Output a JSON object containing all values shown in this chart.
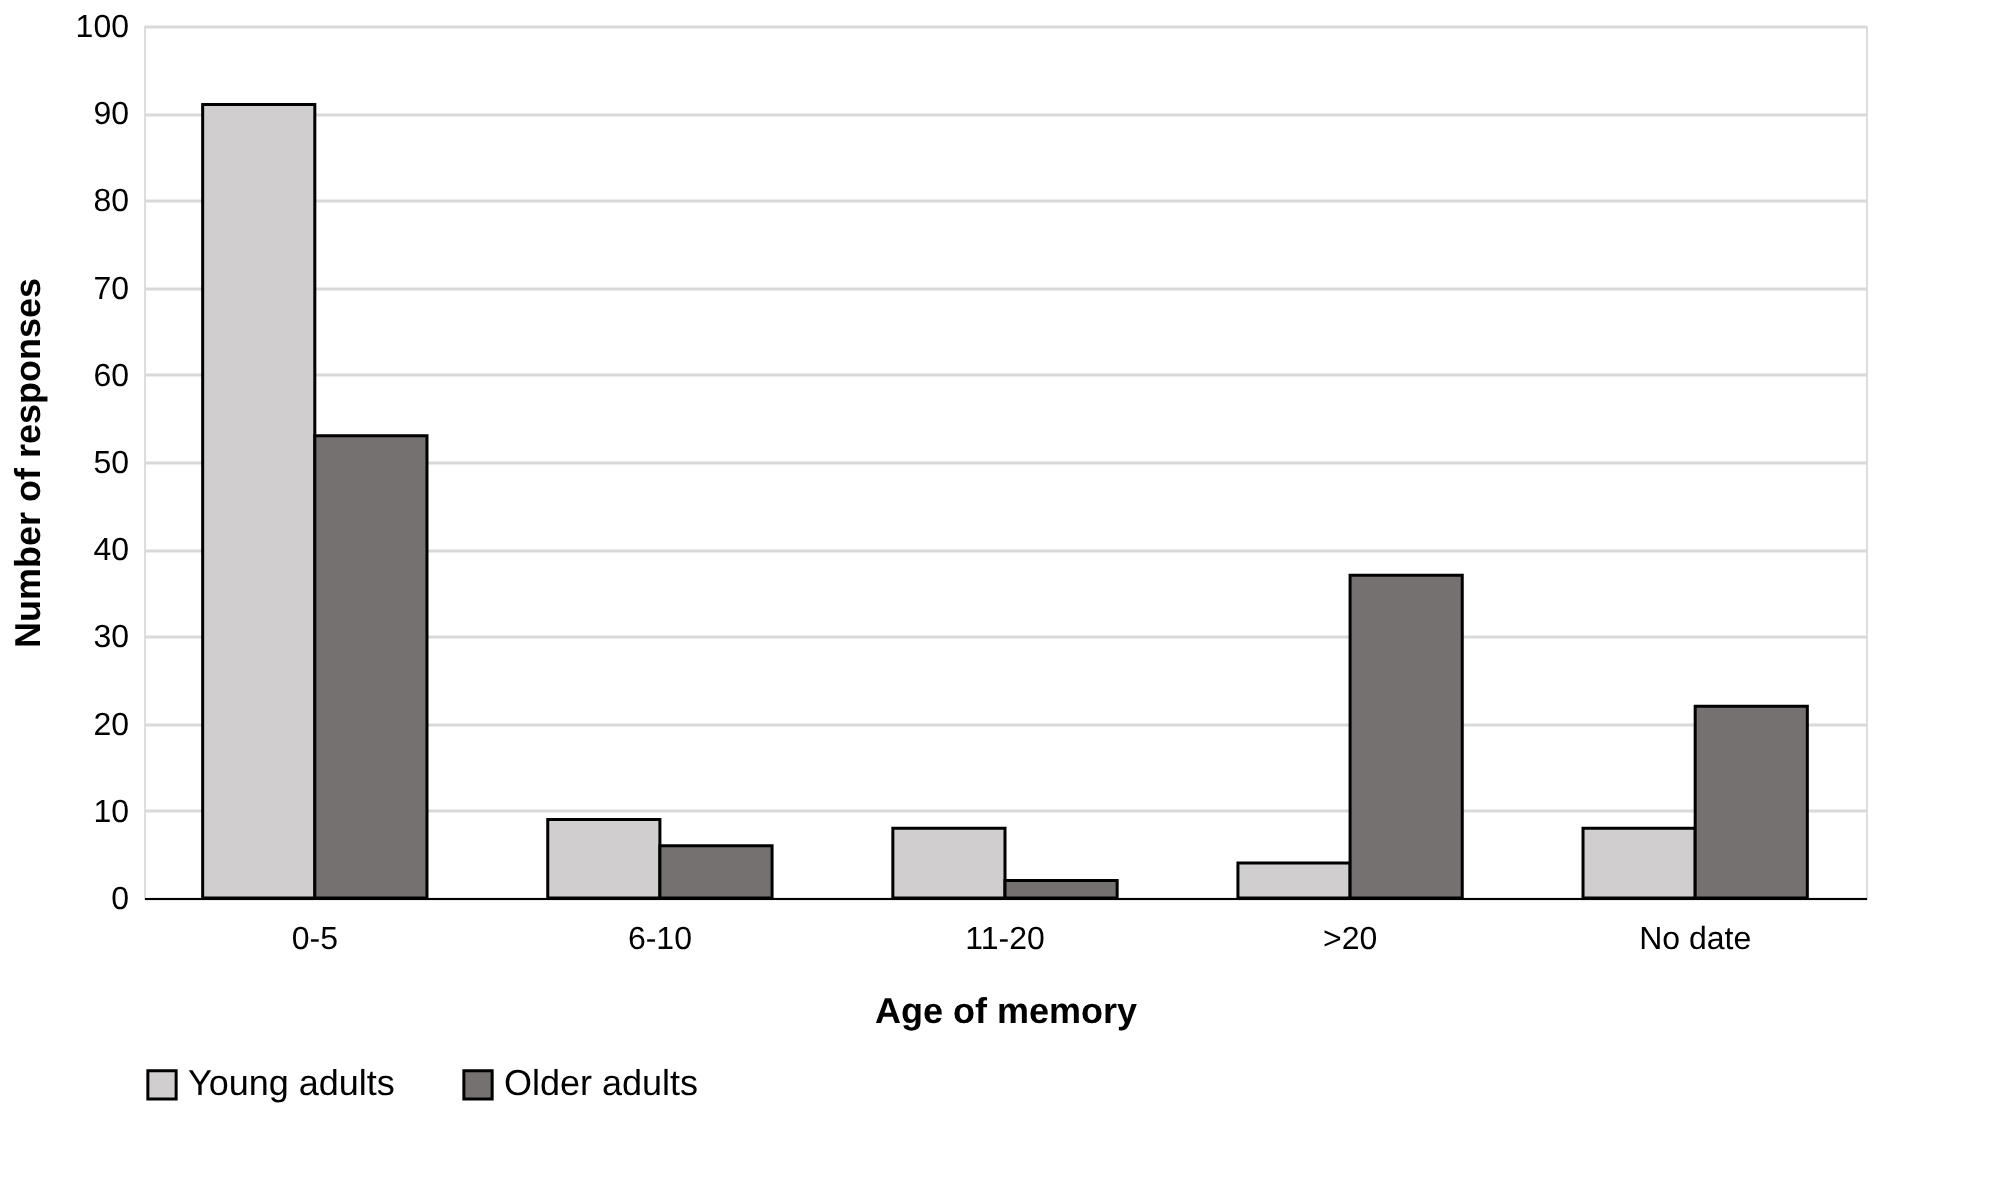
{
  "chart_data": {
    "type": "bar",
    "xlabel": "Age of memory",
    "ylabel": "Number of responses",
    "categories": [
      "0-5",
      "6-10",
      "11-20",
      ">20",
      "No date"
    ],
    "series": [
      {
        "name": "Young adults",
        "color": "#d0cece",
        "values": [
          91,
          9,
          8,
          4,
          8
        ]
      },
      {
        "name": "Older adults",
        "color": "#767171",
        "values": [
          53,
          6,
          2,
          37,
          22
        ]
      }
    ],
    "ylim": [
      0,
      100
    ],
    "yticks": [
      0,
      10,
      20,
      30,
      40,
      50,
      60,
      70,
      80,
      90,
      100
    ],
    "grid": "y",
    "legend": "bottom"
  }
}
